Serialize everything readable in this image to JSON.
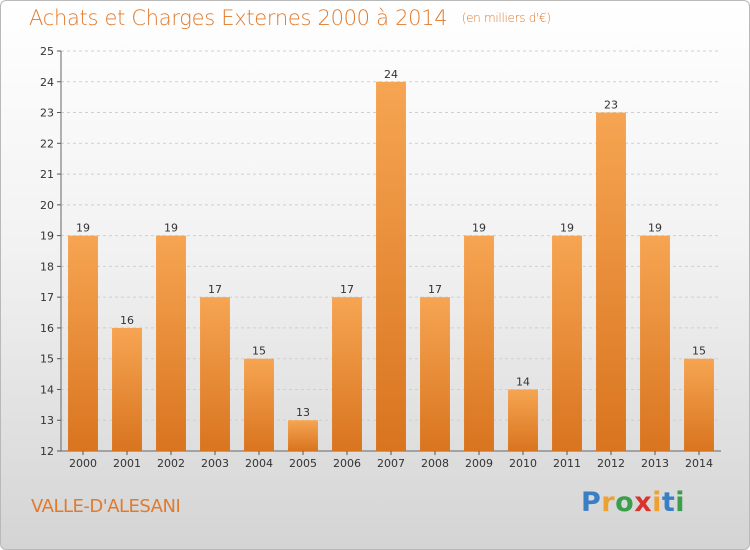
{
  "title": {
    "main": "Achats et Charges Externes 2000 à 2014",
    "unit": "(en milliers d'€)"
  },
  "commune": "VALLE-D'ALESANI",
  "logo": {
    "text": "Proxiti",
    "letters": [
      "P",
      "r",
      "o",
      "x",
      "i",
      "t",
      "i"
    ],
    "colors": [
      "#3a7fc4",
      "#f0a030",
      "#3a9e4a",
      "#d8342e",
      "#f0a030",
      "#3a7fc4",
      "#3a9e4a"
    ]
  },
  "colors": {
    "title": "#e07a2d",
    "bar_top": "#f6a552",
    "bar_bottom": "#d9741f",
    "grid": "#cfcfcf"
  },
  "chart_data": {
    "type": "bar",
    "title": "Achats et Charges Externes 2000 à 2014",
    "subtitle": "(en milliers d'€)",
    "xlabel": "",
    "ylabel": "",
    "categories": [
      "2000",
      "2001",
      "2002",
      "2003",
      "2004",
      "2005",
      "2006",
      "2007",
      "2008",
      "2009",
      "2010",
      "2011",
      "2012",
      "2013",
      "2014"
    ],
    "values": [
      19,
      16,
      19,
      17,
      15,
      13,
      17,
      24,
      17,
      19,
      14,
      19,
      23,
      19,
      15
    ],
    "ylim": [
      12,
      25
    ],
    "yticks": [
      "12",
      "13",
      "14",
      "15",
      "16",
      "17",
      "18",
      "19",
      "20",
      "21",
      "22",
      "23",
      "24",
      "25"
    ],
    "grid": "horizontal dashed",
    "legend": "none"
  }
}
